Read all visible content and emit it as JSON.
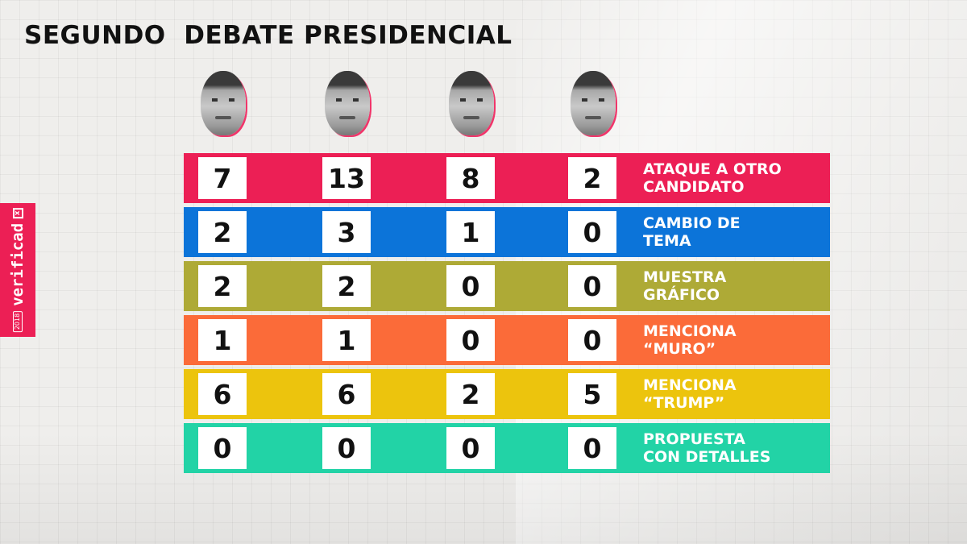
{
  "title": "SEGUNDO  DEBATE PRESIDENCIAL",
  "brand": {
    "name": "verificad",
    "year": "2018",
    "mark": "x"
  },
  "chart_data": {
    "type": "table",
    "title": "SEGUNDO  DEBATE PRESIDENCIAL",
    "columns": [
      "candidate-1",
      "candidate-2",
      "candidate-3",
      "candidate-4"
    ],
    "rows": [
      {
        "label": "ATAQUE A OTRO\nCANDIDATO",
        "color": "#ec1f55",
        "values": [
          7,
          13,
          8,
          2
        ]
      },
      {
        "label": "CAMBIO DE\nTEMA",
        "color": "#0c74d9",
        "values": [
          2,
          3,
          1,
          0
        ]
      },
      {
        "label": "MUESTRA\nGRÁFICO",
        "color": "#aeaa36",
        "values": [
          2,
          2,
          0,
          0
        ]
      },
      {
        "label": "MENCIONA\n“MURO”",
        "color": "#fb6b39",
        "values": [
          1,
          1,
          0,
          0
        ]
      },
      {
        "label": "MENCIONA\n“TRUMP”",
        "color": "#ecc40d",
        "values": [
          6,
          6,
          2,
          5
        ]
      },
      {
        "label": "PROPUESTA\nCON DETALLES",
        "color": "#22d3a6",
        "values": [
          0,
          0,
          0,
          0
        ]
      }
    ]
  }
}
